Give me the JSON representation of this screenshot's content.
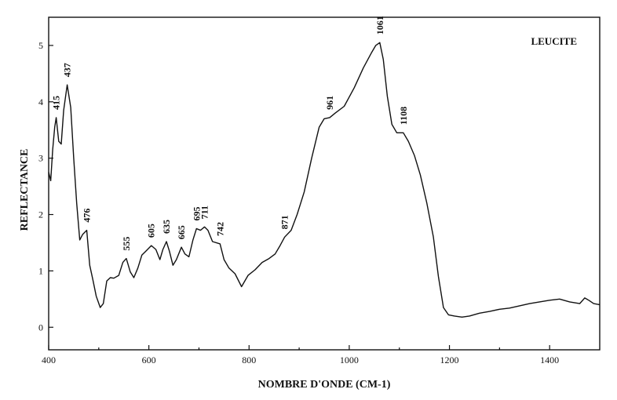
{
  "chart_data": {
    "type": "line",
    "title": "LEUCITE",
    "xlabel": "NOMBRE D'ONDE (CM-1)",
    "ylabel": "REFLECTANCE",
    "xlim": [
      400,
      1500
    ],
    "ylim": [
      -0.4,
      5.5
    ],
    "xticks": [
      400,
      600,
      800,
      1000,
      1200,
      1400
    ],
    "yticks": [
      0,
      1,
      2,
      3,
      4,
      5
    ],
    "grid": false,
    "legend": "none",
    "series": [
      {
        "x": [
          400,
          404,
          408,
          412,
          415,
          420,
          425,
          430,
          437,
          444,
          450,
          456,
          462,
          468,
          476,
          482,
          488,
          495,
          503,
          509,
          516,
          523,
          530,
          540,
          548,
          555,
          563,
          570,
          578,
          586,
          594,
          605,
          614,
          622,
          628,
          635,
          641,
          648,
          655,
          665,
          672,
          680,
          688,
          695,
          703,
          711,
          718,
          727,
          742,
          750,
          760,
          772,
          785,
          798,
          812,
          826,
          840,
          852,
          862,
          871,
          884,
          896,
          910,
          925,
          940,
          950,
          961,
          972,
          990,
          1010,
          1028,
          1045,
          1053,
          1061,
          1068,
          1076,
          1085,
          1095,
          1108,
          1118,
          1130,
          1142,
          1155,
          1168,
          1178,
          1188,
          1198,
          1210,
          1225,
          1240,
          1260,
          1280,
          1300,
          1320,
          1340,
          1360,
          1380,
          1400,
          1420,
          1440,
          1460,
          1470,
          1478,
          1488,
          1500
        ],
        "y": [
          2.75,
          2.6,
          3.15,
          3.55,
          3.72,
          3.3,
          3.25,
          3.85,
          4.3,
          3.9,
          3.0,
          2.2,
          1.55,
          1.65,
          1.72,
          1.1,
          0.85,
          0.55,
          0.35,
          0.42,
          0.82,
          0.88,
          0.87,
          0.92,
          1.15,
          1.22,
          0.98,
          0.88,
          1.05,
          1.28,
          1.35,
          1.45,
          1.38,
          1.2,
          1.38,
          1.52,
          1.35,
          1.1,
          1.2,
          1.42,
          1.3,
          1.25,
          1.55,
          1.75,
          1.72,
          1.78,
          1.72,
          1.52,
          1.48,
          1.2,
          1.05,
          0.95,
          0.72,
          0.92,
          1.02,
          1.15,
          1.22,
          1.3,
          1.45,
          1.6,
          1.72,
          2.0,
          2.4,
          3.0,
          3.55,
          3.7,
          3.72,
          3.8,
          3.92,
          4.25,
          4.6,
          4.88,
          5.0,
          5.05,
          4.75,
          4.1,
          3.6,
          3.45,
          3.45,
          3.3,
          3.05,
          2.7,
          2.2,
          1.6,
          0.9,
          0.35,
          0.22,
          0.2,
          0.18,
          0.2,
          0.25,
          0.28,
          0.32,
          0.34,
          0.38,
          0.42,
          0.45,
          0.48,
          0.5,
          0.45,
          0.42,
          0.52,
          0.48,
          0.42,
          0.4
        ]
      }
    ],
    "annotations": [
      {
        "text": "415",
        "x": 415,
        "y": 3.72
      },
      {
        "text": "437",
        "x": 437,
        "y": 4.3
      },
      {
        "text": "476",
        "x": 476,
        "y": 1.72
      },
      {
        "text": "555",
        "x": 555,
        "y": 1.22
      },
      {
        "text": "605",
        "x": 605,
        "y": 1.45
      },
      {
        "text": "635",
        "x": 635,
        "y": 1.52
      },
      {
        "text": "665",
        "x": 665,
        "y": 1.42
      },
      {
        "text": "695",
        "x": 695,
        "y": 1.75
      },
      {
        "text": "711",
        "x": 711,
        "y": 1.78
      },
      {
        "text": "742",
        "x": 742,
        "y": 1.48
      },
      {
        "text": "871",
        "x": 871,
        "y": 1.6
      },
      {
        "text": "961",
        "x": 961,
        "y": 3.72
      },
      {
        "text": "1061",
        "x": 1061,
        "y": 5.05
      },
      {
        "text": "1108",
        "x": 1108,
        "y": 3.45
      }
    ]
  }
}
